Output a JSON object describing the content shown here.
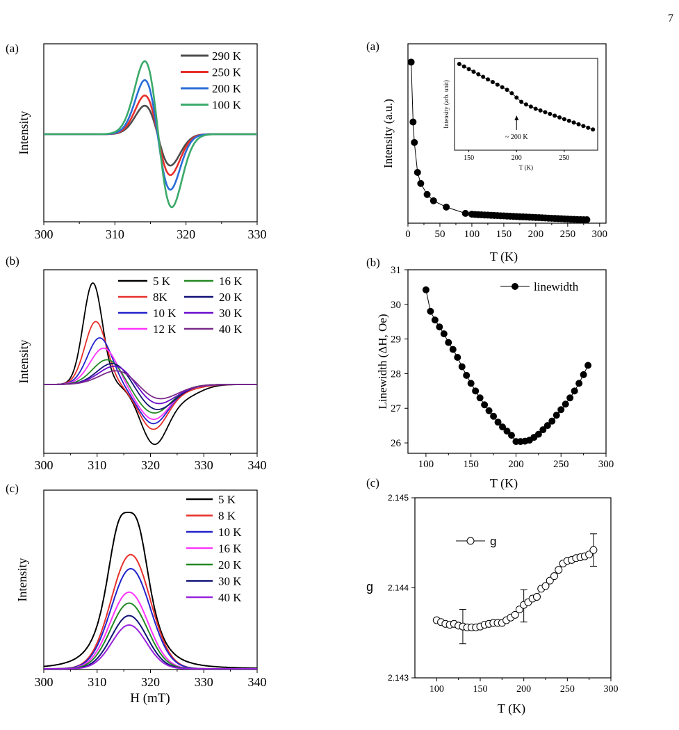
{
  "page_number": "7",
  "chart_data": [
    {
      "id": "L_a",
      "panel_label": "(a)",
      "type": "line",
      "ylabel": "Intensity",
      "xlim": [
        300,
        330
      ],
      "xticks": [
        300,
        310,
        320,
        330
      ],
      "legend_location": "top-right",
      "curve_type": "derivative",
      "series": [
        {
          "name": "290 K",
          "color": "#4d4d4d",
          "center": 316.0,
          "halfwidth": 1.8,
          "peak_amp": 0.39,
          "trough_amp": 0.43,
          "asym": 1.3
        },
        {
          "name": "250 K",
          "color": "#e8302b",
          "center": 316.0,
          "halfwidth": 1.8,
          "peak_amp": 0.53,
          "trough_amp": 0.56,
          "asym": 1.3
        },
        {
          "name": "200 K",
          "color": "#2a6dd9",
          "center": 316.0,
          "halfwidth": 1.8,
          "peak_amp": 0.74,
          "trough_amp": 0.76,
          "asym": 1.35
        },
        {
          "name": "100 K",
          "color": "#3aaa6a",
          "center": 316.1,
          "halfwidth": 1.9,
          "peak_amp": 1.0,
          "trough_amp": 1.0,
          "asym": 1.45
        }
      ]
    },
    {
      "id": "L_b",
      "panel_label": "(b)",
      "type": "line",
      "ylabel": "Intensity",
      "xlim": [
        300,
        340
      ],
      "xticks": [
        300,
        310,
        320,
        330,
        340
      ],
      "legend_location": "top-right",
      "curve_type": "derivative",
      "series": [
        {
          "name": "5 K",
          "color": "#000000",
          "center": 315.0,
          "halfwidth": 5.8,
          "peak_amp": 1.0,
          "trough_amp": 0.56
        },
        {
          "name": "8K",
          "color": "#e8302b",
          "center": 315.0,
          "halfwidth": 5.9,
          "peak_amp": 0.62,
          "trough_amp": 0.43
        },
        {
          "name": "10 K",
          "color": "#2222cc",
          "center": 315.2,
          "halfwidth": 6.0,
          "peak_amp": 0.46,
          "trough_amp": 0.38
        },
        {
          "name": "12 K",
          "color": "#ff33ff",
          "center": 315.4,
          "halfwidth": 5.9,
          "peak_amp": 0.36,
          "trough_amp": 0.34
        },
        {
          "name": "16 K",
          "color": "#228822",
          "center": 315.6,
          "halfwidth": 5.4,
          "peak_amp": 0.25,
          "trough_amp": 0.28
        },
        {
          "name": "20 K",
          "color": "#111177",
          "center": 316.2,
          "halfwidth": 4.6,
          "peak_amp": 0.22,
          "trough_amp": 0.25
        },
        {
          "name": "30 K",
          "color": "#6a0dcc",
          "center": 316.3,
          "halfwidth": 4.3,
          "peak_amp": 0.2,
          "trough_amp": 0.2
        },
        {
          "name": "40 K",
          "color": "#7a2a8a",
          "center": 316.4,
          "halfwidth": 4.2,
          "peak_amp": 0.16,
          "trough_amp": 0.16
        }
      ]
    },
    {
      "id": "L_c",
      "panel_label": "(c)",
      "type": "line",
      "ylabel": "Intensity",
      "xlabel": "H (mT)",
      "xlim": [
        300,
        340
      ],
      "xticks": [
        300,
        310,
        320,
        330,
        340
      ],
      "legend_location": "top-right",
      "curve_type": "absorption",
      "series": [
        {
          "name": "5 K",
          "color": "#000000",
          "peak": 1.0,
          "width": 8.6,
          "center": 315.8,
          "flat": 1
        },
        {
          "name": "8 K",
          "color": "#e8302b",
          "peak": 0.73,
          "width": 8.2,
          "center": 316.3,
          "flat": 0
        },
        {
          "name": "10 K",
          "color": "#2222cc",
          "peak": 0.64,
          "width": 8.2,
          "center": 316.3,
          "flat": 0
        },
        {
          "name": "16 K",
          "color": "#ff33ff",
          "peak": 0.49,
          "width": 7.9,
          "center": 316.0,
          "flat": 0
        },
        {
          "name": "20 K",
          "color": "#228822",
          "peak": 0.42,
          "width": 7.7,
          "center": 316.0,
          "flat": 0
        },
        {
          "name": "30 K",
          "color": "#111177",
          "peak": 0.34,
          "width": 7.4,
          "center": 316.0,
          "flat": 0
        },
        {
          "name": "40 K",
          "color": "#9922dd",
          "peak": 0.28,
          "width": 7.2,
          "center": 316.0,
          "flat": 0
        }
      ]
    },
    {
      "id": "R_a",
      "panel_label": "(a)",
      "type": "scatter",
      "xlabel": "T (K)",
      "ylabel": "Intensity (a.u.)",
      "xlim": [
        0,
        310
      ],
      "ylim": [
        0,
        1.05
      ],
      "xticks": [
        0,
        50,
        100,
        150,
        200,
        250,
        300
      ],
      "x": [
        5,
        8,
        10,
        15,
        20,
        30,
        40,
        60,
        90,
        100,
        105,
        110,
        115,
        120,
        125,
        130,
        135,
        140,
        145,
        150,
        155,
        160,
        165,
        170,
        175,
        180,
        185,
        190,
        195,
        200,
        205,
        210,
        215,
        220,
        225,
        230,
        235,
        240,
        245,
        250,
        255,
        260,
        265,
        270,
        275,
        280
      ],
      "y": [
        1.0,
        0.62,
        0.49,
        0.3,
        0.23,
        0.16,
        0.12,
        0.08,
        0.04,
        0.035,
        0.033,
        0.032,
        0.031,
        0.03,
        0.029,
        0.028,
        0.027,
        0.026,
        0.025,
        0.024,
        0.023,
        0.022,
        0.021,
        0.02,
        0.019,
        0.018,
        0.017,
        0.016,
        0.015,
        0.014,
        0.013,
        0.012,
        0.011,
        0.01,
        0.009,
        0.008,
        0.007,
        0.006,
        0.005,
        0.004,
        0.003,
        0.002,
        0.001,
        0.0005,
        0.0002,
        0.0
      ],
      "inset": {
        "xlabel": "T (K)",
        "ylabel": "Intensity (arb. unit)",
        "xlim": [
          135,
          285
        ],
        "ylim": [
          0,
          1
        ],
        "xticks": [
          150,
          200,
          250
        ],
        "annotation": "~ 200 K",
        "annotation_x": 200,
        "x": [
          140,
          145,
          150,
          155,
          160,
          165,
          170,
          175,
          180,
          185,
          190,
          195,
          200,
          205,
          210,
          215,
          220,
          225,
          230,
          235,
          240,
          245,
          250,
          255,
          260,
          265,
          270,
          275,
          280
        ],
        "y": [
          0.96,
          0.93,
          0.9,
          0.87,
          0.84,
          0.81,
          0.78,
          0.75,
          0.72,
          0.69,
          0.66,
          0.62,
          0.57,
          0.52,
          0.49,
          0.465,
          0.44,
          0.42,
          0.4,
          0.38,
          0.36,
          0.34,
          0.32,
          0.3,
          0.28,
          0.26,
          0.24,
          0.22,
          0.2
        ]
      }
    },
    {
      "id": "R_b",
      "panel_label": "(b)",
      "type": "line",
      "xlabel": "T (K)",
      "ylabel": "Linewidth (ΔH, Oe)",
      "xlim": [
        80,
        300
      ],
      "ylim": [
        25.7,
        31.0
      ],
      "xticks": [
        100,
        150,
        200,
        250,
        300
      ],
      "yticks": [
        26,
        27,
        28,
        29,
        30,
        31
      ],
      "legend_location": "top-right",
      "series": [
        {
          "name": "linewidth",
          "x": [
            100,
            105,
            110,
            115,
            120,
            125,
            130,
            135,
            140,
            145,
            150,
            155,
            160,
            165,
            170,
            175,
            180,
            185,
            190,
            195,
            200,
            205,
            210,
            215,
            220,
            225,
            230,
            235,
            240,
            245,
            250,
            255,
            260,
            265,
            270,
            275,
            280
          ],
          "y": [
            30.42,
            29.8,
            29.55,
            29.35,
            29.15,
            28.9,
            28.7,
            28.47,
            28.2,
            27.95,
            27.72,
            27.5,
            27.3,
            27.1,
            26.93,
            26.77,
            26.6,
            26.46,
            26.34,
            26.22,
            26.04,
            26.04,
            26.05,
            26.08,
            26.16,
            26.25,
            26.38,
            26.5,
            26.63,
            26.8,
            26.96,
            27.12,
            27.3,
            27.5,
            27.72,
            27.97,
            28.24
          ]
        }
      ]
    },
    {
      "id": "R_c",
      "panel_label": "(c)",
      "type": "line",
      "xlabel": "T (K)",
      "ylabel": "g",
      "xlim": [
        75,
        300
      ],
      "ylim": [
        2.143,
        2.145
      ],
      "xticks": [
        100,
        150,
        200,
        250,
        300
      ],
      "yticks": [
        2.143,
        2.144,
        2.145
      ],
      "legend_location": "top-left",
      "series": [
        {
          "name": "g",
          "x": [
            100,
            105,
            110,
            115,
            120,
            125,
            130,
            135,
            140,
            145,
            150,
            155,
            160,
            165,
            170,
            175,
            180,
            185,
            190,
            195,
            200,
            205,
            210,
            215,
            220,
            225,
            230,
            235,
            240,
            245,
            250,
            255,
            260,
            265,
            270,
            275,
            280
          ],
          "y": [
            2.14364,
            2.14362,
            2.1436,
            2.14359,
            2.1436,
            2.14358,
            2.14357,
            2.14356,
            2.14356,
            2.14356,
            2.14357,
            2.14359,
            2.1436,
            2.14361,
            2.14361,
            2.14361,
            2.14364,
            2.14367,
            2.1437,
            2.14376,
            2.14381,
            2.14384,
            2.14388,
            2.1439,
            2.14399,
            2.14402,
            2.14408,
            2.14413,
            2.1442,
            2.14427,
            2.1443,
            2.14431,
            2.14433,
            2.14434,
            2.14435,
            2.14437,
            2.14442
          ]
        }
      ],
      "errorbars": [
        {
          "x": 130,
          "y": 2.14357,
          "err": 0.00019
        },
        {
          "x": 200,
          "y": 2.1438,
          "err": 0.00018
        },
        {
          "x": 280,
          "y": 2.14442,
          "err": 0.00018
        }
      ]
    }
  ]
}
